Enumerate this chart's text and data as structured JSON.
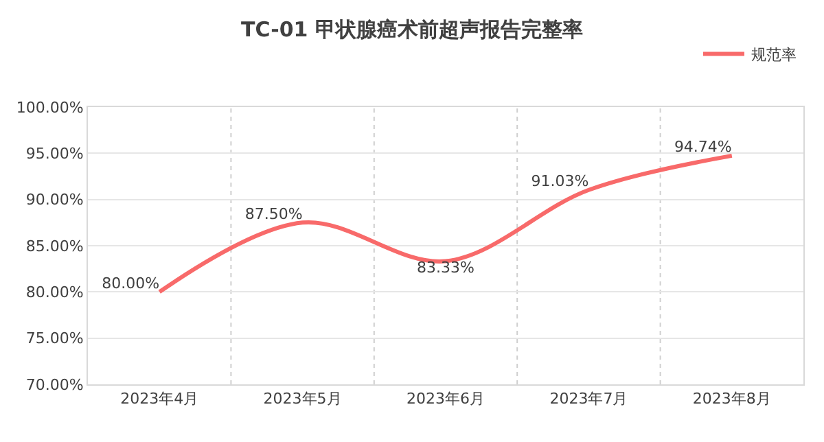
{
  "chart_data": {
    "type": "line",
    "title": "TC-01 甲状腺癌术前超声报告完整率",
    "categories": [
      "2023年4月",
      "2023年5月",
      "2023年6月",
      "2023年7月",
      "2023年8月"
    ],
    "series": [
      {
        "name": "规范率",
        "color": "#f86a6a",
        "values": [
          80.0,
          87.5,
          83.33,
          91.03,
          94.74
        ],
        "value_labels": [
          "80.00%",
          "87.50%",
          "83.33%",
          "91.03%",
          "94.74%"
        ]
      }
    ],
    "ylim": [
      70,
      100
    ],
    "yticks": [
      {
        "value": 70,
        "label": "70.00%"
      },
      {
        "value": 75,
        "label": "75.00%"
      },
      {
        "value": 80,
        "label": "80.00%"
      },
      {
        "value": 85,
        "label": "85.00%"
      },
      {
        "value": 90,
        "label": "90.00%"
      },
      {
        "value": 95,
        "label": "95.00%"
      },
      {
        "value": 100,
        "label": "100.00%"
      }
    ],
    "grid": true,
    "legend": "top right",
    "marker": "none",
    "line_style": "solid"
  }
}
